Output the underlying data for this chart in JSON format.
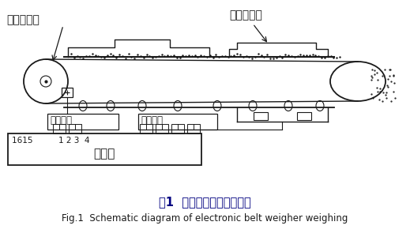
{
  "title_cn": "图1  电子皮带秤稱重原理图",
  "title_en": "Fig.1  Schematic diagram of electronic belt weigher weighing",
  "label_speed_sensor": "测速传感器",
  "label_weight_sensor": "称重传感器",
  "label_speed_signal": "速度信号",
  "label_weight_signal": "称重信号",
  "label_integrator": "积算仪",
  "label_terminals": "1615          1 2 3  4",
  "bg_color": "#ffffff",
  "line_color": "#1a1a1a",
  "text_color": "#1a1a1a",
  "title_color": "#000080"
}
